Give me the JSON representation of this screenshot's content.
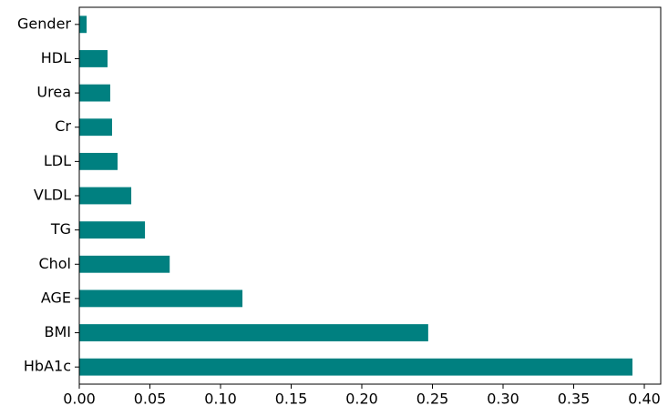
{
  "chart_data": {
    "type": "barh",
    "categories": [
      "Gender",
      "HDL",
      "Urea",
      "Cr",
      "LDL",
      "VLDL",
      "TG",
      "Chol",
      "AGE",
      "BMI",
      "HbA1c"
    ],
    "values": [
      0.0052,
      0.02,
      0.0219,
      0.0232,
      0.0271,
      0.0368,
      0.0465,
      0.064,
      0.1155,
      0.247,
      0.3916
    ],
    "color": "#008080",
    "xlim": [
      0,
      0.4116
    ],
    "xticks": [
      {
        "value": 0,
        "label": "0.00"
      },
      0.05,
      {
        "value": 0.1,
        "label": "0.10"
      },
      0.15,
      {
        "value": 0.2,
        "label": "0.20"
      },
      0.25,
      {
        "value": 0.3,
        "label": "0.30"
      },
      0.35,
      {
        "value": 0.4,
        "label": "0.40"
      }
    ],
    "grid": false
  }
}
